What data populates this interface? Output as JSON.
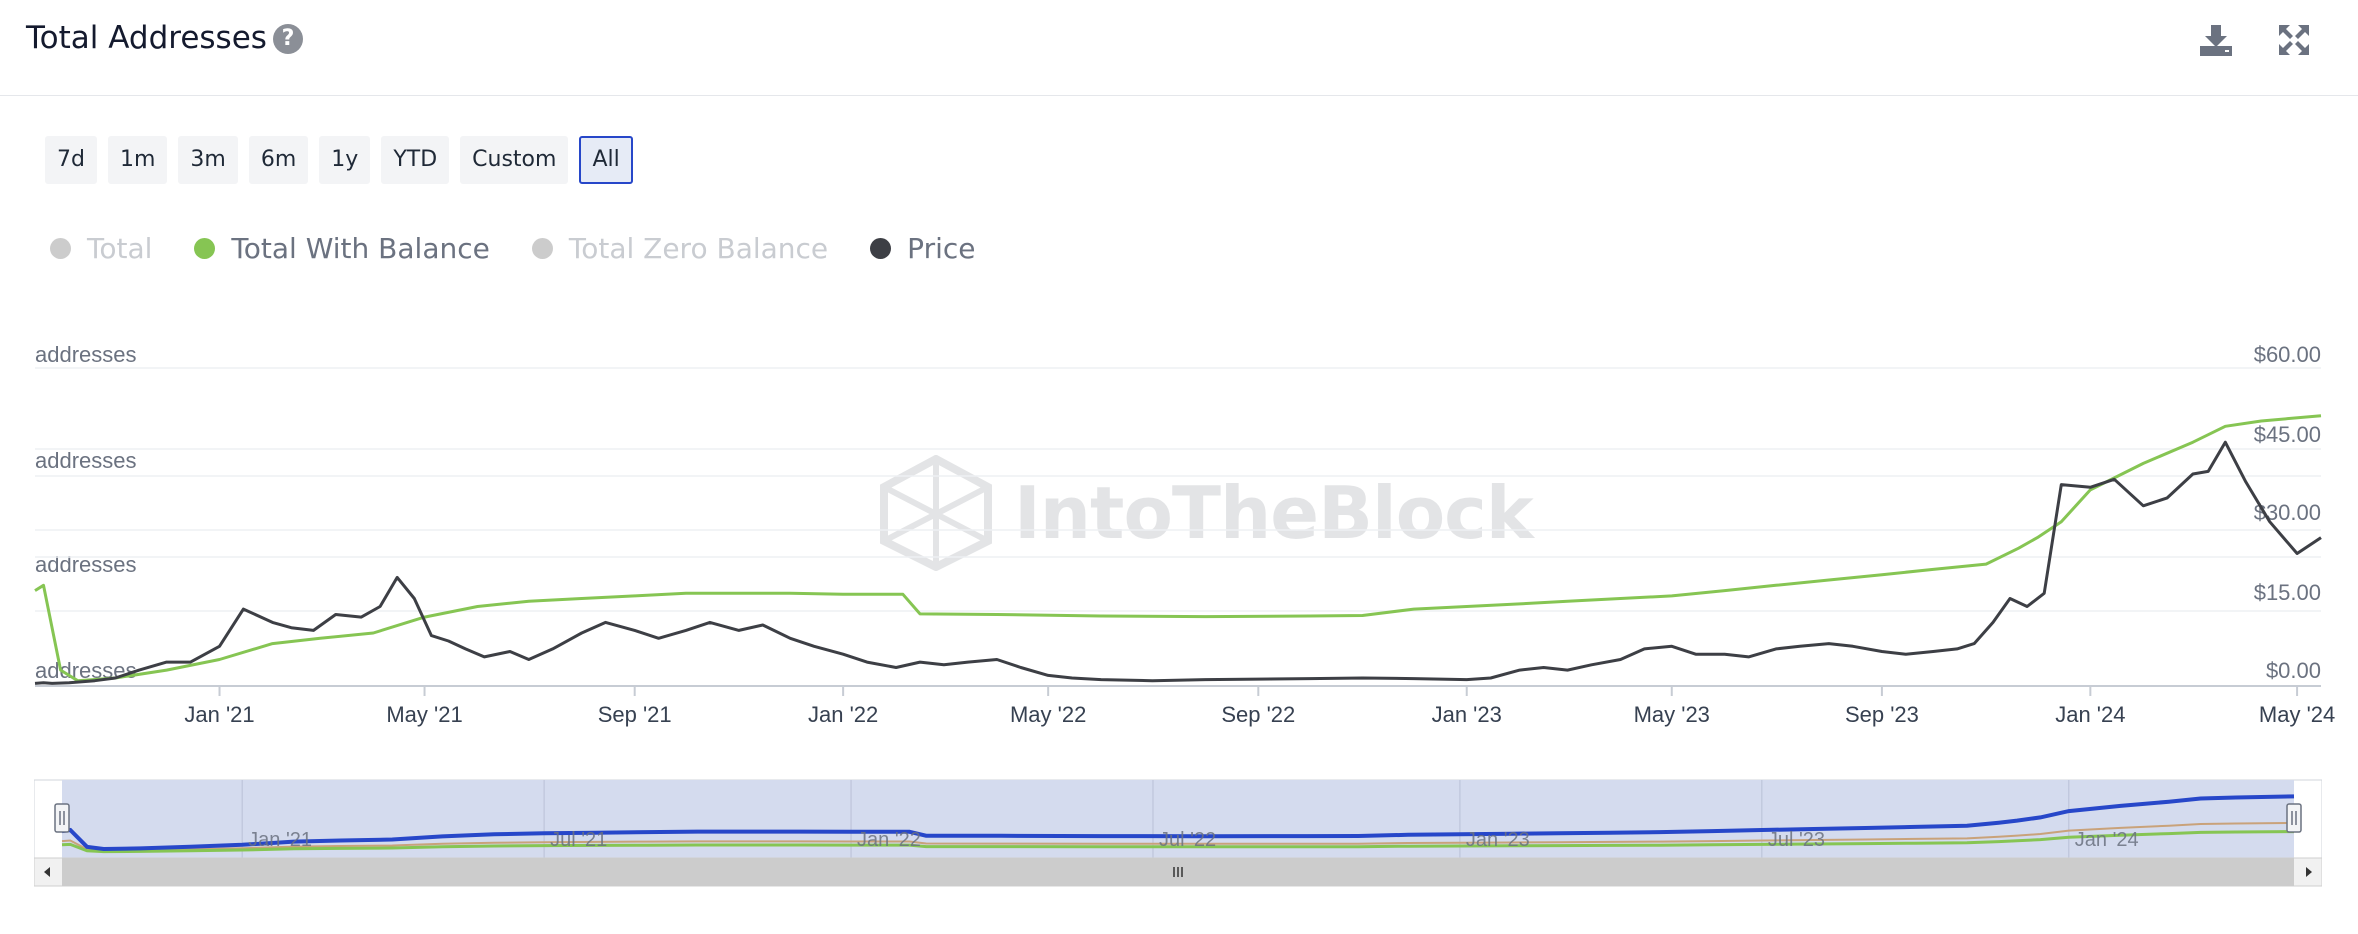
{
  "header": {
    "title": "Total Addresses",
    "help_icon": "question-circle-icon",
    "download_icon": "download-icon",
    "expand_icon": "expand-icon"
  },
  "range_buttons": [
    {
      "label": "7d",
      "active": false
    },
    {
      "label": "1m",
      "active": false
    },
    {
      "label": "3m",
      "active": false
    },
    {
      "label": "6m",
      "active": false
    },
    {
      "label": "1y",
      "active": false
    },
    {
      "label": "YTD",
      "active": false
    },
    {
      "label": "Custom",
      "active": false
    },
    {
      "label": "All",
      "active": true
    }
  ],
  "legend": [
    {
      "label": "Total",
      "color": "#cccccc",
      "visible": false
    },
    {
      "label": "Total With Balance",
      "color": "#86c553",
      "visible": true
    },
    {
      "label": "Total Zero Balance",
      "color": "#cccccc",
      "visible": false
    },
    {
      "label": "Price",
      "color": "#3d3f45",
      "visible": true
    }
  ],
  "watermark": "IntoTheBlock",
  "chart_data": {
    "type": "line",
    "x_type": "date",
    "x_range": [
      "2020-09-15",
      "2024-05-15"
    ],
    "left_axis": {
      "tick_labels": [
        "addresses",
        "addresses",
        "addresses",
        "addresses"
      ]
    },
    "right_axis": {
      "tick_labels": [
        "$60.00",
        "$45.00",
        "$30.00",
        "$15.00",
        "$0.00"
      ],
      "range": [
        0,
        60
      ]
    },
    "x_tick_labels": [
      "Jan '21",
      "May '21",
      "Sep '21",
      "Jan '22",
      "May '22",
      "Sep '22",
      "Jan '23",
      "May '23",
      "Sep '23",
      "Jan '24",
      "May '24"
    ],
    "x_tick_dates": [
      "2021-01-01",
      "2021-05-01",
      "2021-09-01",
      "2022-01-01",
      "2022-05-01",
      "2022-09-01",
      "2023-01-01",
      "2023-05-01",
      "2023-09-01",
      "2024-01-01",
      "2024-05-01"
    ],
    "grid": true,
    "series": [
      {
        "name": "Total With Balance",
        "color": "#86c553",
        "axis": "left",
        "x": [
          "2020-09-15",
          "2020-09-20",
          "2020-09-30",
          "2020-10-10",
          "2020-11-01",
          "2020-12-01",
          "2021-01-01",
          "2021-02-01",
          "2021-03-01",
          "2021-04-01",
          "2021-05-01",
          "2021-06-01",
          "2021-07-01",
          "2021-08-01",
          "2021-09-01",
          "2021-10-01",
          "2021-11-01",
          "2021-12-01",
          "2022-01-01",
          "2022-02-05",
          "2022-02-15",
          "2022-04-01",
          "2022-06-01",
          "2022-08-01",
          "2022-10-01",
          "2022-11-01",
          "2022-12-01",
          "2023-01-01",
          "2023-02-01",
          "2023-03-01",
          "2023-04-01",
          "2023-05-01",
          "2023-06-01",
          "2023-07-01",
          "2023-08-01",
          "2023-09-01",
          "2023-10-01",
          "2023-11-01",
          "2023-11-20",
          "2023-12-01",
          "2023-12-15",
          "2024-01-01",
          "2024-02-01",
          "2024-03-01",
          "2024-03-20",
          "2024-04-10",
          "2024-05-15"
        ],
        "values": [
          18,
          19,
          3,
          1,
          1.5,
          3,
          5,
          8,
          9,
          10,
          13,
          15,
          16,
          16.5,
          17,
          17.5,
          17.5,
          17.5,
          17.3,
          17.3,
          13.6,
          13.5,
          13.2,
          13.1,
          13.2,
          13.3,
          14.5,
          15,
          15.5,
          16,
          16.5,
          17,
          18,
          19,
          20,
          21,
          22,
          23,
          26,
          28,
          31,
          37,
          42,
          46,
          49,
          50,
          51
        ]
      },
      {
        "name": "Price",
        "color": "#3d3f45",
        "axis": "right",
        "x": [
          "2020-09-15",
          "2020-09-20",
          "2020-09-25",
          "2020-10-05",
          "2020-10-20",
          "2020-11-01",
          "2020-11-15",
          "2020-12-01",
          "2020-12-15",
          "2021-01-01",
          "2021-01-15",
          "2021-02-01",
          "2021-02-12",
          "2021-02-25",
          "2021-03-10",
          "2021-03-25",
          "2021-04-05",
          "2021-04-15",
          "2021-04-25",
          "2021-05-05",
          "2021-05-15",
          "2021-05-25",
          "2021-06-05",
          "2021-06-20",
          "2021-07-01",
          "2021-07-15",
          "2021-08-01",
          "2021-08-15",
          "2021-09-01",
          "2021-09-15",
          "2021-10-01",
          "2021-10-15",
          "2021-11-01",
          "2021-11-15",
          "2021-12-01",
          "2021-12-15",
          "2022-01-01",
          "2022-01-15",
          "2022-02-01",
          "2022-02-15",
          "2022-03-01",
          "2022-03-15",
          "2022-04-01",
          "2022-04-15",
          "2022-05-01",
          "2022-05-15",
          "2022-06-01",
          "2022-07-01",
          "2022-08-01",
          "2022-09-01",
          "2022-10-01",
          "2022-11-01",
          "2022-12-01",
          "2023-01-01",
          "2023-01-15",
          "2023-02-01",
          "2023-02-15",
          "2023-03-01",
          "2023-03-15",
          "2023-04-01",
          "2023-04-15",
          "2023-05-01",
          "2023-05-15",
          "2023-06-01",
          "2023-06-15",
          "2023-07-01",
          "2023-07-15",
          "2023-08-01",
          "2023-08-15",
          "2023-09-01",
          "2023-09-15",
          "2023-10-01",
          "2023-10-15",
          "2023-10-25",
          "2023-11-05",
          "2023-11-15",
          "2023-11-25",
          "2023-12-05",
          "2023-12-15",
          "2024-01-01",
          "2024-01-15",
          "2024-02-01",
          "2024-02-15",
          "2024-03-01",
          "2024-03-10",
          "2024-03-20",
          "2024-04-01",
          "2024-04-15",
          "2024-05-01",
          "2024-05-15"
        ],
        "values": [
          0.5,
          0.6,
          0.5,
          0.6,
          1.0,
          1.5,
          3.0,
          4.5,
          4.5,
          7.5,
          14.5,
          12.0,
          11.0,
          10.5,
          13.5,
          13.0,
          15.0,
          20.5,
          16.5,
          9.5,
          8.5,
          7.0,
          5.5,
          6.5,
          5.0,
          7.0,
          10.0,
          12.0,
          10.5,
          9.0,
          10.5,
          12.0,
          10.5,
          11.5,
          9.0,
          7.5,
          6.0,
          4.5,
          3.5,
          4.5,
          4.0,
          4.5,
          5.0,
          3.5,
          2.0,
          1.5,
          1.2,
          1.0,
          1.2,
          1.3,
          1.4,
          1.5,
          1.4,
          1.2,
          1.5,
          3.0,
          3.5,
          3.0,
          4.0,
          5.0,
          7.0,
          7.5,
          6.0,
          6.0,
          5.5,
          7.0,
          7.5,
          8.0,
          7.5,
          6.5,
          6.0,
          6.5,
          7.0,
          8.0,
          12.0,
          16.5,
          15.0,
          17.5,
          38.0,
          37.5,
          39.0,
          34.0,
          35.5,
          40.0,
          40.5,
          46.0,
          38.5,
          31.0,
          25.0,
          28.0
        ]
      }
    ]
  },
  "navigator": {
    "x_tick_labels": [
      "Jan '21",
      "Jul '21",
      "Jan '22",
      "Jul '22",
      "Jan '23",
      "Jul '23",
      "Jan '24"
    ],
    "x_tick_dates": [
      "2021-01-01",
      "2021-07-01",
      "2022-01-01",
      "2022-07-01",
      "2023-01-01",
      "2023-07-01",
      "2024-01-01"
    ],
    "series_colors": [
      "#2747c9",
      "#c9a27a",
      "#86c553"
    ],
    "scrollbar_grip": "III"
  }
}
